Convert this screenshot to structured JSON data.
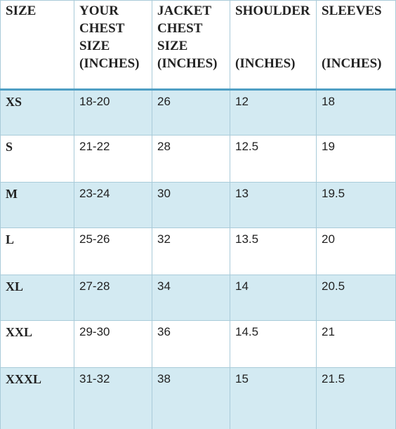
{
  "table": {
    "header": [
      [
        "SIZE"
      ],
      [
        "YOUR",
        "CHEST",
        "SIZE",
        "(INCHES)"
      ],
      [
        "JACKET",
        "CHEST",
        "SIZE",
        "(INCHES)"
      ],
      [
        "SHOULDER",
        "(INCHES)"
      ],
      [
        "SLEEVES",
        "(INCHES)"
      ]
    ],
    "rows": [
      [
        "XS",
        "18-20",
        "26",
        "12",
        "18"
      ],
      [
        "S",
        "21-22",
        "28",
        "12.5",
        "19"
      ],
      [
        "M",
        "23-24",
        "30",
        "13",
        "19.5"
      ],
      [
        "L",
        "25-26",
        "32",
        "13.5",
        "20"
      ],
      [
        "XL",
        "27-28",
        "34",
        "14",
        "20.5"
      ],
      [
        "XXL",
        "29-30",
        "36",
        "14.5",
        "21"
      ],
      [
        "XXXL",
        "31-32",
        "38",
        "15",
        "21.5"
      ]
    ]
  }
}
